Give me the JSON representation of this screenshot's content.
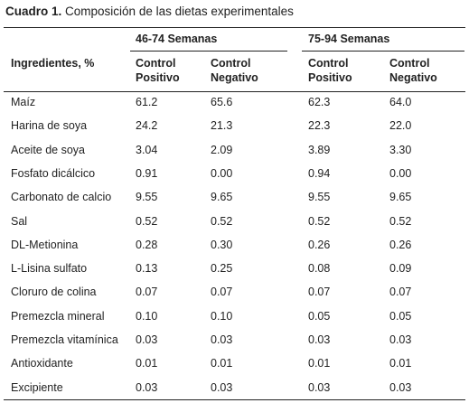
{
  "caption": {
    "label": "Cuadro 1.",
    "text": "Composición de las dietas experimentales"
  },
  "header": {
    "ingredient_col": "Ingredientes, %",
    "groups": [
      {
        "label": "46-74 Semanas",
        "cols": [
          {
            "line1": "Control",
            "line2": "Positivo"
          },
          {
            "line1": "Control",
            "line2": "Negativo"
          }
        ]
      },
      {
        "label": "75-94 Semanas",
        "cols": [
          {
            "line1": "Control",
            "line2": "Positivo"
          },
          {
            "line1": "Control",
            "line2": "Negativo"
          }
        ]
      }
    ]
  },
  "rows": [
    {
      "name": "Maíz",
      "values": [
        "61.2",
        "65.6",
        "62.3",
        "64.0"
      ]
    },
    {
      "name": "Harina de soya",
      "values": [
        "24.2",
        "21.3",
        "22.3",
        "22.0"
      ]
    },
    {
      "name": "Aceite de soya",
      "values": [
        "3.04",
        "2.09",
        "3.89",
        "3.30"
      ]
    },
    {
      "name": "Fosfato dicálcico",
      "values": [
        "0.91",
        "0.00",
        "0.94",
        "0.00"
      ]
    },
    {
      "name": "Carbonato de calcio",
      "values": [
        "9.55",
        "9.65",
        "9.55",
        "9.65"
      ]
    },
    {
      "name": "Sal",
      "values": [
        "0.52",
        "0.52",
        "0.52",
        "0.52"
      ]
    },
    {
      "name": "DL-Metionina",
      "values": [
        "0.28",
        "0.30",
        "0.26",
        "0.26"
      ]
    },
    {
      "name": "L-Lisina sulfato",
      "values": [
        "0.13",
        "0.25",
        "0.08",
        "0.09"
      ]
    },
    {
      "name": "Cloruro de colina",
      "values": [
        "0.07",
        "0.07",
        "0.07",
        "0.07"
      ]
    },
    {
      "name": "Premezcla mineral",
      "values": [
        "0.10",
        "0.10",
        "0.05",
        "0.05"
      ]
    },
    {
      "name": "Premezcla vitamínica",
      "values": [
        "0.03",
        "0.03",
        "0.03",
        "0.03"
      ]
    },
    {
      "name": "Antioxidante",
      "values": [
        "0.01",
        "0.01",
        "0.01",
        "0.01"
      ]
    },
    {
      "name": "Excipiente",
      "values": [
        "0.03",
        "0.03",
        "0.03",
        "0.03"
      ]
    }
  ]
}
